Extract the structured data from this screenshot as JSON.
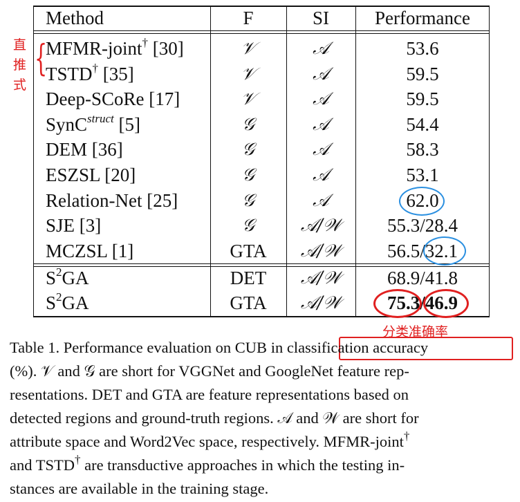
{
  "table": {
    "headers": {
      "method": "Method",
      "f": "F",
      "si": "SI",
      "performance": "Performance"
    },
    "rows": [
      {
        "method": "MFMR-joint",
        "sup": "†",
        "ref": " [30]",
        "f": "𝒱",
        "si": "𝒜",
        "perf": "53.6"
      },
      {
        "method": "TSTD",
        "sup": "†",
        "ref": " [35]",
        "f": "𝒱",
        "si": "𝒜",
        "perf": "59.5"
      },
      {
        "method": "Deep-SCoRe",
        "sup": "",
        "ref": " [17]",
        "f": "𝒱",
        "si": "𝒜",
        "perf": "59.5"
      },
      {
        "method": "SynC",
        "sup": "struct",
        "ref": " [5]",
        "f": "𝒢",
        "si": "𝒜",
        "perf": "54.4"
      },
      {
        "method": "DEM",
        "sup": "",
        "ref": " [36]",
        "f": "𝒢",
        "si": "𝒜",
        "perf": "58.3"
      },
      {
        "method": "ESZSL",
        "sup": "",
        "ref": " [20]",
        "f": "𝒢",
        "si": "𝒜",
        "perf": "53.1"
      },
      {
        "method": "Relation-Net",
        "sup": "",
        "ref": " [25]",
        "f": "𝒢",
        "si": "𝒜",
        "perf": "62.0"
      },
      {
        "method": "SJE",
        "sup": "",
        "ref": " [3]",
        "f": "𝒢",
        "si": "𝒜/𝒲",
        "perf": "55.3/28.4"
      },
      {
        "method": "MCZSL",
        "sup": "",
        "ref": " [1]",
        "f": "GTA",
        "si": "𝒜/𝒲",
        "perf": "56.5/32.1"
      }
    ],
    "ours": [
      {
        "base": "S",
        "sup": "2",
        "name": "GA",
        "f": "DET",
        "si": "𝒜/𝒲",
        "perf_a": "68.9",
        "perf_sep": "/",
        "perf_b": "41.8"
      },
      {
        "base": "S",
        "sup": "2",
        "name": "GA",
        "f": "GTA",
        "si": "𝒜/𝒲",
        "perf_a": "75.3",
        "perf_sep": "/",
        "perf_b": "46.9"
      }
    ]
  },
  "annotations": {
    "left_label": [
      "直",
      "推",
      "式"
    ],
    "below_label": "分类准确率",
    "colors": {
      "red": "#e02020",
      "blue": "#2a8fe0"
    }
  },
  "caption": {
    "prefix": "Table 1. Performance evaluation on CUB in ",
    "highlight": "classification accuracy",
    "line1_rest": "(%). 𝒱 and 𝒢 are short for VGGNet and GoogleNet feature rep-",
    "line2": "resentations. DET and GTA are feature representations based on",
    "line3": "detected regions and ground-truth regions. 𝒜 and 𝒲 are short for",
    "line4_a": "attribute space and Word2Vec space, respectively. MFMR-joint",
    "line4_sup": "†",
    "line5_a": "and TSTD",
    "line5_sup": "†",
    "line5_b": " are transductive approaches in which the testing in-",
    "line6": "stances are available in the training stage."
  }
}
